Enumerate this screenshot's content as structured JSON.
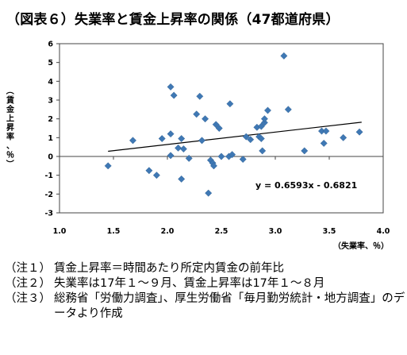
{
  "title": "（図表６）失業率と賃金上昇率の関係（47都道府県）",
  "chart_data": {
    "type": "scatter",
    "title": "（図表６）失業率と賃金上昇率の関係（47都道府県）",
    "xlabel": "（失業率、％）",
    "ylabel": "（賃金上昇率、％）",
    "xlim": [
      1.0,
      4.0
    ],
    "ylim": [
      -3,
      6
    ],
    "xticks": [
      "1.0",
      "1.5",
      "2.0",
      "2.5",
      "3.0",
      "3.5",
      "4.0"
    ],
    "yticks": [
      "6",
      "5",
      "4",
      "3",
      "2",
      "1",
      "0",
      "-1",
      "-2",
      "-3"
    ],
    "grid": false,
    "trendline": {
      "slope": 0.6593,
      "intercept": -0.6821,
      "equation": "y = 0.6593x - 0.6821",
      "x_range": [
        1.45,
        3.8
      ]
    },
    "points": [
      [
        1.45,
        -0.5
      ],
      [
        1.68,
        0.85
      ],
      [
        1.83,
        -0.75
      ],
      [
        1.9,
        -1.0
      ],
      [
        1.95,
        0.95
      ],
      [
        2.03,
        3.7
      ],
      [
        2.06,
        3.25
      ],
      [
        2.03,
        1.2
      ],
      [
        2.03,
        0.05
      ],
      [
        2.1,
        0.45
      ],
      [
        2.13,
        0.95
      ],
      [
        2.13,
        -1.2
      ],
      [
        2.15,
        0.4
      ],
      [
        2.2,
        -0.1
      ],
      [
        2.27,
        2.25
      ],
      [
        2.3,
        3.2
      ],
      [
        2.32,
        0.85
      ],
      [
        2.35,
        2.0
      ],
      [
        2.38,
        -1.95
      ],
      [
        2.4,
        -0.2
      ],
      [
        2.42,
        -0.35
      ],
      [
        2.43,
        -0.5
      ],
      [
        2.45,
        1.7
      ],
      [
        2.48,
        1.5
      ],
      [
        2.5,
        0.0
      ],
      [
        2.58,
        2.8
      ],
      [
        2.57,
        0.0
      ],
      [
        2.6,
        0.1
      ],
      [
        2.7,
        -0.15
      ],
      [
        2.73,
        1.05
      ],
      [
        2.77,
        0.9
      ],
      [
        2.83,
        1.55
      ],
      [
        2.85,
        1.05
      ],
      [
        2.87,
        1.6
      ],
      [
        2.87,
        0.95
      ],
      [
        2.9,
        1.8
      ],
      [
        2.9,
        2.0
      ],
      [
        2.88,
        0.3
      ],
      [
        2.93,
        2.45
      ],
      [
        3.08,
        5.35
      ],
      [
        3.12,
        2.5
      ],
      [
        3.27,
        0.3
      ],
      [
        3.43,
        1.35
      ],
      [
        3.45,
        0.7
      ],
      [
        3.47,
        1.35
      ],
      [
        3.63,
        1.0
      ],
      [
        3.78,
        1.3
      ]
    ],
    "marker_color": "#3f78b4",
    "trendline_color": "#000000"
  },
  "notes": [
    {
      "tag": "（注１）",
      "text": "賃金上昇率＝時間あたり所定内賃金の前年比"
    },
    {
      "tag": "（注２）",
      "text": "失業率は17年１～９月、賃金上昇率は17年１～８月"
    },
    {
      "tag": "（注３）",
      "text": "総務省「労働力調査」、厚生労働省「毎月勤労統計・地方調査」のデータより作成"
    }
  ]
}
